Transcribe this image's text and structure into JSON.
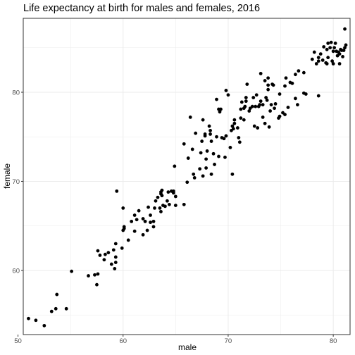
{
  "chart_data": {
    "type": "scatter",
    "title": "Life expectancy at birth for males and females, 2016",
    "xlabel": "male",
    "ylabel": "female",
    "xlim": [
      50.5,
      81.6
    ],
    "ylim": [
      52.8,
      88.3
    ],
    "x_ticks": [
      50,
      60,
      70,
      80
    ],
    "y_ticks": [
      60,
      70,
      80
    ],
    "grid": true,
    "legend": "none",
    "point_color": "#000000",
    "points": [
      [
        51.0,
        54.6
      ],
      [
        51.7,
        54.4
      ],
      [
        52.5,
        53.8
      ],
      [
        53.2,
        55.4
      ],
      [
        53.6,
        55.7
      ],
      [
        53.7,
        57.3
      ],
      [
        54.6,
        55.7
      ],
      [
        55.1,
        59.9
      ],
      [
        56.7,
        59.4
      ],
      [
        57.3,
        59.5
      ],
      [
        57.5,
        58.4
      ],
      [
        57.6,
        59.6
      ],
      [
        57.6,
        62.2
      ],
      [
        57.8,
        61.7
      ],
      [
        58.2,
        61.2
      ],
      [
        58.3,
        61.8
      ],
      [
        58.6,
        62.0
      ],
      [
        58.9,
        60.7
      ],
      [
        59.1,
        62.3
      ],
      [
        59.2,
        60.2
      ],
      [
        59.3,
        61.5
      ],
      [
        59.3,
        60.9
      ],
      [
        59.3,
        63.0
      ],
      [
        59.4,
        68.9
      ],
      [
        59.9,
        62.5
      ],
      [
        60.0,
        64.5
      ],
      [
        60.1,
        64.9
      ],
      [
        60.0,
        67.0
      ],
      [
        60.1,
        64.7
      ],
      [
        60.5,
        63.4
      ],
      [
        60.8,
        65.5
      ],
      [
        61.1,
        66.2
      ],
      [
        61.1,
        64.4
      ],
      [
        61.3,
        65.7
      ],
      [
        61.5,
        66.7
      ],
      [
        61.9,
        64.0
      ],
      [
        61.9,
        65.8
      ],
      [
        62.1,
        65.5
      ],
      [
        62.3,
        64.5
      ],
      [
        62.4,
        67.1
      ],
      [
        62.6,
        65.4
      ],
      [
        62.6,
        66.2
      ],
      [
        62.9,
        65.5
      ],
      [
        62.9,
        64.9
      ],
      [
        63.0,
        67.0
      ],
      [
        63.1,
        67.8
      ],
      [
        63.3,
        68.2
      ],
      [
        63.5,
        67.0
      ],
      [
        63.6,
        68.8
      ],
      [
        63.6,
        68.6
      ],
      [
        63.7,
        69.0
      ],
      [
        63.7,
        68.4
      ],
      [
        63.6,
        66.6
      ],
      [
        63.8,
        67.3
      ],
      [
        64.0,
        67.2
      ],
      [
        64.2,
        67.8
      ],
      [
        64.3,
        68.8
      ],
      [
        64.4,
        67.4
      ],
      [
        64.6,
        68.9
      ],
      [
        64.8,
        68.7
      ],
      [
        64.8,
        68.9
      ],
      [
        64.9,
        71.7
      ],
      [
        65.0,
        68.3
      ],
      [
        65.0,
        67.3
      ],
      [
        65.8,
        67.4
      ],
      [
        65.8,
        74.2
      ],
      [
        66.1,
        69.9
      ],
      [
        66.2,
        72.6
      ],
      [
        66.4,
        77.2
      ],
      [
        66.6,
        73.6
      ],
      [
        66.7,
        70.8
      ],
      [
        66.8,
        70.4
      ],
      [
        66.9,
        75.4
      ],
      [
        67.3,
        71.4
      ],
      [
        67.4,
        73.2
      ],
      [
        67.5,
        74.5
      ],
      [
        67.6,
        76.9
      ],
      [
        67.6,
        70.6
      ],
      [
        67.8,
        75.3
      ],
      [
        67.8,
        75.1
      ],
      [
        67.9,
        72.5
      ],
      [
        67.9,
        71.5
      ],
      [
        68.0,
        73.4
      ],
      [
        68.2,
        76.2
      ],
      [
        68.3,
        75.7
      ],
      [
        68.3,
        75.3
      ],
      [
        68.4,
        74.5
      ],
      [
        68.4,
        70.8
      ],
      [
        68.6,
        73.1
      ],
      [
        68.7,
        71.9
      ],
      [
        68.9,
        79.2
      ],
      [
        68.9,
        75.0
      ],
      [
        69.1,
        72.8
      ],
      [
        69.1,
        78.1
      ],
      [
        69.2,
        77.8
      ],
      [
        69.3,
        78.1
      ],
      [
        69.4,
        74.9
      ],
      [
        69.6,
        74.8
      ],
      [
        69.7,
        72.7
      ],
      [
        69.8,
        75.1
      ],
      [
        69.8,
        80.2
      ],
      [
        70.0,
        79.7
      ],
      [
        70.2,
        73.8
      ],
      [
        70.3,
        75.7
      ],
      [
        70.4,
        76.2
      ],
      [
        70.4,
        70.8
      ],
      [
        70.5,
        75.9
      ],
      [
        70.6,
        76.9
      ],
      [
        70.6,
        76.5
      ],
      [
        70.9,
        76.0
      ],
      [
        71.0,
        74.9
      ],
      [
        71.1,
        74.4
      ],
      [
        71.2,
        78.1
      ],
      [
        71.2,
        77.1
      ],
      [
        71.3,
        78.9
      ],
      [
        71.5,
        78.2
      ],
      [
        71.5,
        76.9
      ],
      [
        71.6,
        78.4
      ],
      [
        71.7,
        79.0
      ],
      [
        71.7,
        79.4
      ],
      [
        71.8,
        80.9
      ],
      [
        72.0,
        77.9
      ],
      [
        72.1,
        78.2
      ],
      [
        72.3,
        78.4
      ],
      [
        72.4,
        79.4
      ],
      [
        72.5,
        76.2
      ],
      [
        72.6,
        78.4
      ],
      [
        72.7,
        79.7
      ],
      [
        72.8,
        76.0
      ],
      [
        72.9,
        78.4
      ],
      [
        73.0,
        78.6
      ],
      [
        73.1,
        79.0
      ],
      [
        73.1,
        82.1
      ],
      [
        73.3,
        78.6
      ],
      [
        73.3,
        77.2
      ],
      [
        73.5,
        81.3
      ],
      [
        73.5,
        76.5
      ],
      [
        73.6,
        79.4
      ],
      [
        73.7,
        79.1
      ],
      [
        73.8,
        81.6
      ],
      [
        73.8,
        80.8
      ],
      [
        73.8,
        80.3
      ],
      [
        73.9,
        76.1
      ],
      [
        74.0,
        77.9
      ],
      [
        74.1,
        78.6
      ],
      [
        74.2,
        80.9
      ],
      [
        74.3,
        80.8
      ],
      [
        74.4,
        78.2
      ],
      [
        74.5,
        78.7
      ],
      [
        74.8,
        77.1
      ],
      [
        74.9,
        79.8
      ],
      [
        74.9,
        77.3
      ],
      [
        75.2,
        77.7
      ],
      [
        75.4,
        77.5
      ],
      [
        75.4,
        80.7
      ],
      [
        75.5,
        81.6
      ],
      [
        75.7,
        78.3
      ],
      [
        75.9,
        81.1
      ],
      [
        76.1,
        81.0
      ],
      [
        76.4,
        79.3
      ],
      [
        76.4,
        82.0
      ],
      [
        76.7,
        82.4
      ],
      [
        76.6,
        78.6
      ],
      [
        77.2,
        79.9
      ],
      [
        77.2,
        82.2
      ],
      [
        77.4,
        79.8
      ],
      [
        78.0,
        83.7
      ],
      [
        78.2,
        84.5
      ],
      [
        78.4,
        83.2
      ],
      [
        78.6,
        83.9
      ],
      [
        78.6,
        83.5
      ],
      [
        78.6,
        79.6
      ],
      [
        78.8,
        84.3
      ],
      [
        79.0,
        83.6
      ],
      [
        79.1,
        85.1
      ],
      [
        79.3,
        83.3
      ],
      [
        79.4,
        83.2
      ],
      [
        79.4,
        84.8
      ],
      [
        79.5,
        85.5
      ],
      [
        79.5,
        83.9
      ],
      [
        79.7,
        85.0
      ],
      [
        79.8,
        85.6
      ],
      [
        79.9,
        83.5
      ],
      [
        80.0,
        83.2
      ],
      [
        80.0,
        84.6
      ],
      [
        80.1,
        85.0
      ],
      [
        80.2,
        85.5
      ],
      [
        80.3,
        84.6
      ],
      [
        80.4,
        84.1
      ],
      [
        80.5,
        84.5
      ],
      [
        80.6,
        84.3
      ],
      [
        80.6,
        83.2
      ],
      [
        80.7,
        84.8
      ],
      [
        80.8,
        84.7
      ],
      [
        80.9,
        84.0
      ],
      [
        81.0,
        84.7
      ],
      [
        81.1,
        85.0
      ],
      [
        81.1,
        87.1
      ],
      [
        81.2,
        85.3
      ]
    ]
  }
}
